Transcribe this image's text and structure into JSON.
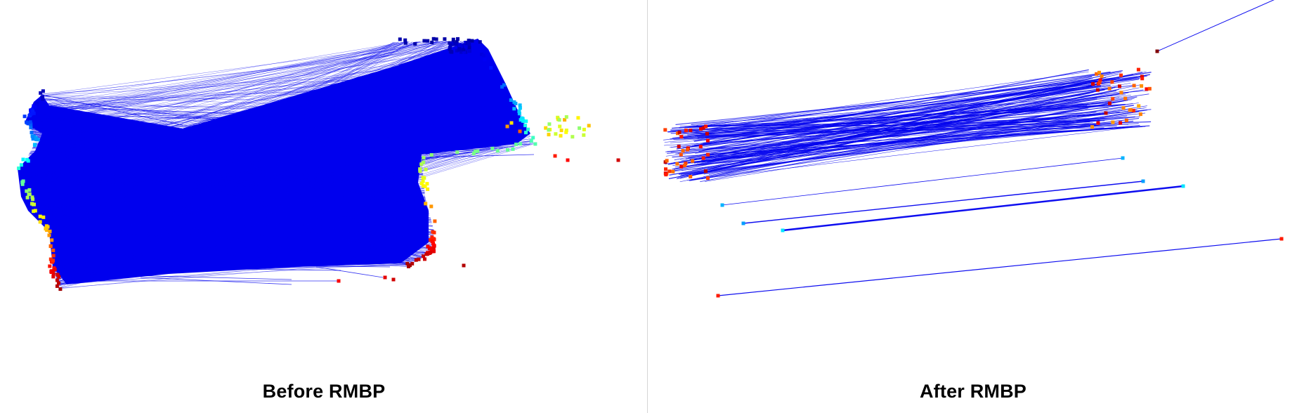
{
  "panels": [
    {
      "caption": "Before RMBP"
    },
    {
      "caption": "After RMBP"
    }
  ],
  "colors": {
    "match_line": "#0000ee",
    "background": "#ffffff",
    "divider": "#d6d6d6",
    "point_colormap": "jet"
  }
}
